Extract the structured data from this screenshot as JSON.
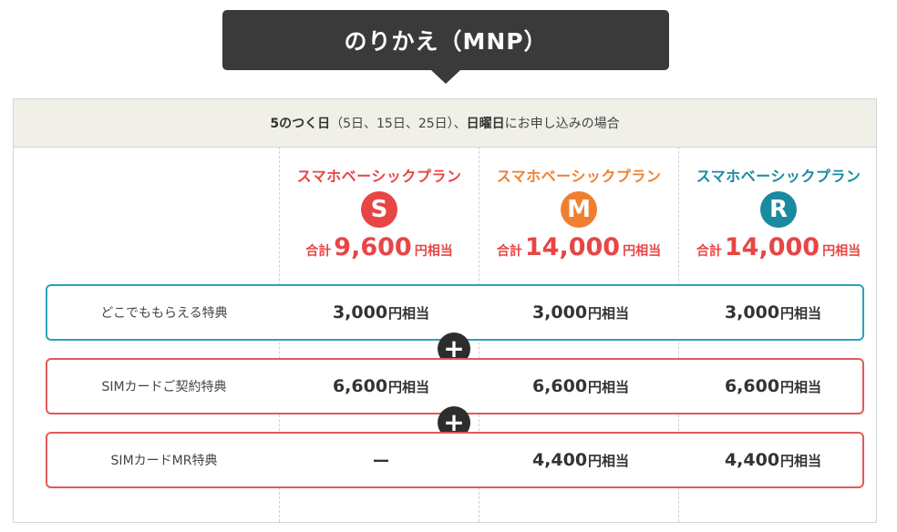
{
  "title": "のりかえ（MNP）",
  "condition": {
    "bold1": "5のつく日",
    "text1": "（5日、15日、25日）、",
    "bold2": "日曜日",
    "text2": "にお申し込みの場合"
  },
  "plans": [
    {
      "name": "スマホベーシックプラン",
      "letter": "S",
      "total_label": "合計",
      "total": "9,600",
      "unit": "円相当",
      "color": "#e84545"
    },
    {
      "name": "スマホベーシックプラン",
      "letter": "M",
      "total_label": "合計",
      "total": "14,000",
      "unit": "円相当",
      "color": "#f08030"
    },
    {
      "name": "スマホベーシックプラン",
      "letter": "R",
      "total_label": "合計",
      "total": "14,000",
      "unit": "円相当",
      "color": "#1a8aa0"
    }
  ],
  "benefits": [
    {
      "label": "どこでももらえる特典",
      "border_color": "#2aa3b8",
      "values": [
        {
          "num": "3,000",
          "unit": "円相当"
        },
        {
          "num": "3,000",
          "unit": "円相当"
        },
        {
          "num": "3,000",
          "unit": "円相当"
        }
      ]
    },
    {
      "label": "SIMカードご契約特典",
      "border_color": "#e05a5a",
      "values": [
        {
          "num": "6,600",
          "unit": "円相当"
        },
        {
          "num": "6,600",
          "unit": "円相当"
        },
        {
          "num": "6,600",
          "unit": "円相当"
        }
      ]
    },
    {
      "label": "SIMカードMR特典",
      "border_color": "#e05a5a",
      "values": [
        {
          "num": "",
          "unit": "",
          "dash": "ー"
        },
        {
          "num": "4,400",
          "unit": "円相当"
        },
        {
          "num": "4,400",
          "unit": "円相当"
        }
      ]
    }
  ],
  "plus_symbol": "+"
}
